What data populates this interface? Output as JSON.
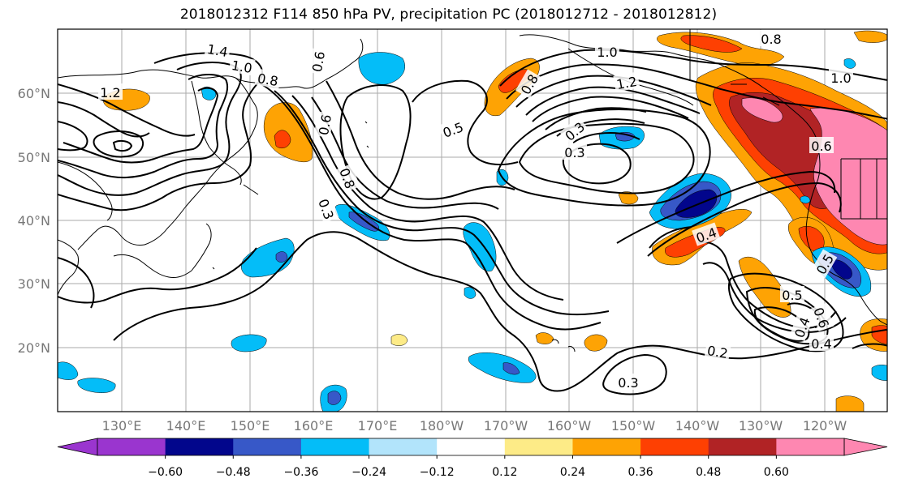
{
  "title": "2018012312 F114 850 hPa PV, precipitation PC (2018012712 - 2018012812)",
  "lat_labels": [
    "60°N",
    "50°N",
    "40°N",
    "30°N",
    "20°N"
  ],
  "lon_labels": [
    "130°E",
    "140°E",
    "150°E",
    "160°E",
    "170°E",
    "180°W",
    "170°W",
    "160°W",
    "150°W",
    "140°W",
    "130°W",
    "120°W"
  ],
  "colorbar": {
    "colors": [
      "#9a35cf",
      "#02068c",
      "#3758c8",
      "#04bdf8",
      "#b2e4fb",
      "#ffffff",
      "#fdeb87",
      "#fea304",
      "#fe4002",
      "#b12325",
      "#fe87b1",
      "#fe87b1"
    ],
    "tick_labels": [
      "−0.60",
      "−0.48",
      "−0.36",
      "−0.24",
      "−0.12",
      "0.12",
      "0.24",
      "0.36",
      "0.48",
      "0.60"
    ]
  },
  "contour_labels": [
    "1.4",
    "1.0",
    "0.8",
    "0.6",
    "0.5",
    "0.5",
    "0.4",
    "0.3",
    "0.3",
    "0.3",
    "1.2",
    "1.0",
    "0.8",
    "0.8",
    "1.0",
    "0.6",
    "0.4",
    "0.5",
    "0.4",
    "0.6",
    "0.2",
    "0.3",
    "0.6",
    "0.8",
    "1.2"
  ],
  "shading_colors": {
    "orange": "#fea304",
    "yellow": "#fdeb87",
    "red": "#fe4002",
    "darkred": "#b12325",
    "pink": "#fe87b1",
    "cyan": "#04bdf8",
    "lightblue": "#b2e4fb",
    "blue": "#3758c8",
    "navy": "#02068c",
    "purple": "#9a35cf"
  }
}
